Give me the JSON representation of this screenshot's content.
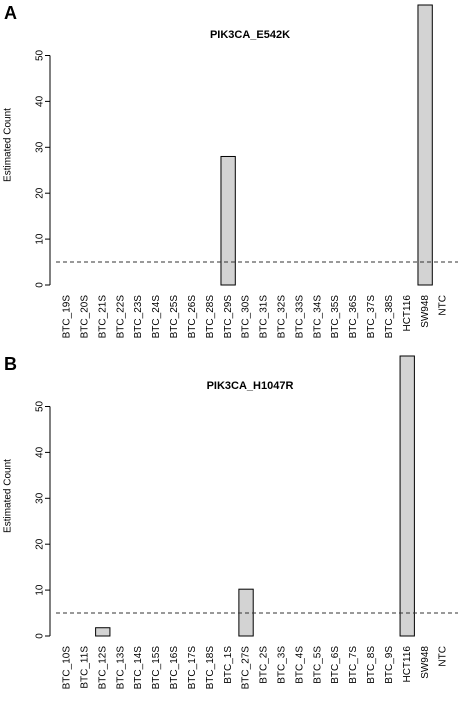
{
  "chart_data": [
    {
      "type": "bar",
      "panel_label": "A",
      "title": "PIK3CA_E542K",
      "y_label": "Estimated Count",
      "categories": [
        "BTC_19S",
        "BTC_20S",
        "BTC_21S",
        "BTC_22S",
        "BTC_23S",
        "BTC_24S",
        "BTC_25S",
        "BTC_26S",
        "BTC_28S",
        "BTC_29S",
        "BTC_30S",
        "BTC_31S",
        "BTC_32S",
        "BTC_33S",
        "BTC_34S",
        "BTC_35S",
        "BTC_36S",
        "BTC_37S",
        "BTC_38S",
        "HCT116",
        "SW948",
        "NTC"
      ],
      "values": [
        0,
        0,
        0,
        0,
        0,
        0,
        0,
        0,
        0,
        28,
        0,
        0,
        0,
        0,
        0,
        0,
        0,
        0,
        0,
        0,
        61,
        0
      ],
      "color": "#d3d3d3",
      "reference_line": 5,
      "ylim": [
        0,
        61
      ],
      "yticks": [
        0,
        10,
        20,
        30,
        40,
        50
      ]
    },
    {
      "type": "bar",
      "panel_label": "B",
      "title": "PIK3CA_H1047R",
      "y_label": "Estimated Count",
      "categories": [
        "BTC_10S",
        "BTC_11S",
        "BTC_12S",
        "BTC_13S",
        "BTC_14S",
        "BTC_15S",
        "BTC_16S",
        "BTC_17S",
        "BTC_18S",
        "BTC_1S",
        "BTC_27S",
        "BTC_2S",
        "BTC_3S",
        "BTC_4S",
        "BTC_5S",
        "BTC_6S",
        "BTC_7S",
        "BTC_8S",
        "BTC_9S",
        "HCT116",
        "SW948",
        "NTC"
      ],
      "values": [
        0,
        0,
        1.8,
        0,
        0,
        0,
        0,
        0,
        0,
        0,
        10.2,
        0,
        0,
        0,
        0,
        0,
        0,
        0,
        0,
        61,
        0,
        0
      ],
      "color": "#d3d3d3",
      "reference_line": 5,
      "ylim": [
        0,
        61
      ],
      "yticks": [
        0,
        10,
        20,
        30,
        40,
        50
      ]
    }
  ]
}
